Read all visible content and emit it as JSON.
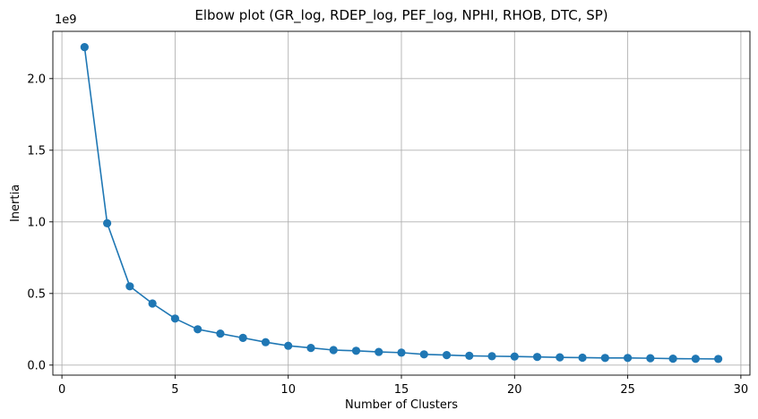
{
  "chart_data": {
    "type": "line",
    "title": "Elbow plot (GR_log, RDEP_log, PEF_log, NPHI, RHOB, DTC, SP)",
    "xlabel": "Number of Clusters",
    "ylabel": "Inertia",
    "y_offset_label": "1e9",
    "x": [
      1,
      2,
      3,
      4,
      5,
      6,
      7,
      8,
      9,
      10,
      11,
      12,
      13,
      14,
      15,
      16,
      17,
      18,
      19,
      20,
      21,
      22,
      23,
      24,
      25,
      26,
      27,
      28,
      29
    ],
    "series": [
      {
        "values": [
          2.22,
          0.99,
          0.55,
          0.43,
          0.325,
          0.25,
          0.22,
          0.19,
          0.16,
          0.135,
          0.12,
          0.105,
          0.1,
          0.092,
          0.087,
          0.075,
          0.07,
          0.065,
          0.062,
          0.06,
          0.057,
          0.054,
          0.052,
          0.05,
          0.05,
          0.048,
          0.045,
          0.044,
          0.043
        ],
        "color": "#1f77b4"
      }
    ],
    "xlim": [
      -0.4,
      30.4
    ],
    "ylim": [
      -0.07,
      2.33
    ],
    "x_ticks": [
      0,
      5,
      10,
      15,
      20,
      25,
      30
    ],
    "x_tick_labels": [
      "0",
      "5",
      "10",
      "15",
      "20",
      "25",
      "30"
    ],
    "y_ticks": [
      0.0,
      0.5,
      1.0,
      1.5,
      2.0
    ],
    "y_tick_labels": [
      "0.0",
      "0.5",
      "1.0",
      "1.5",
      "2.0"
    ],
    "grid": true,
    "marker": "circle"
  }
}
